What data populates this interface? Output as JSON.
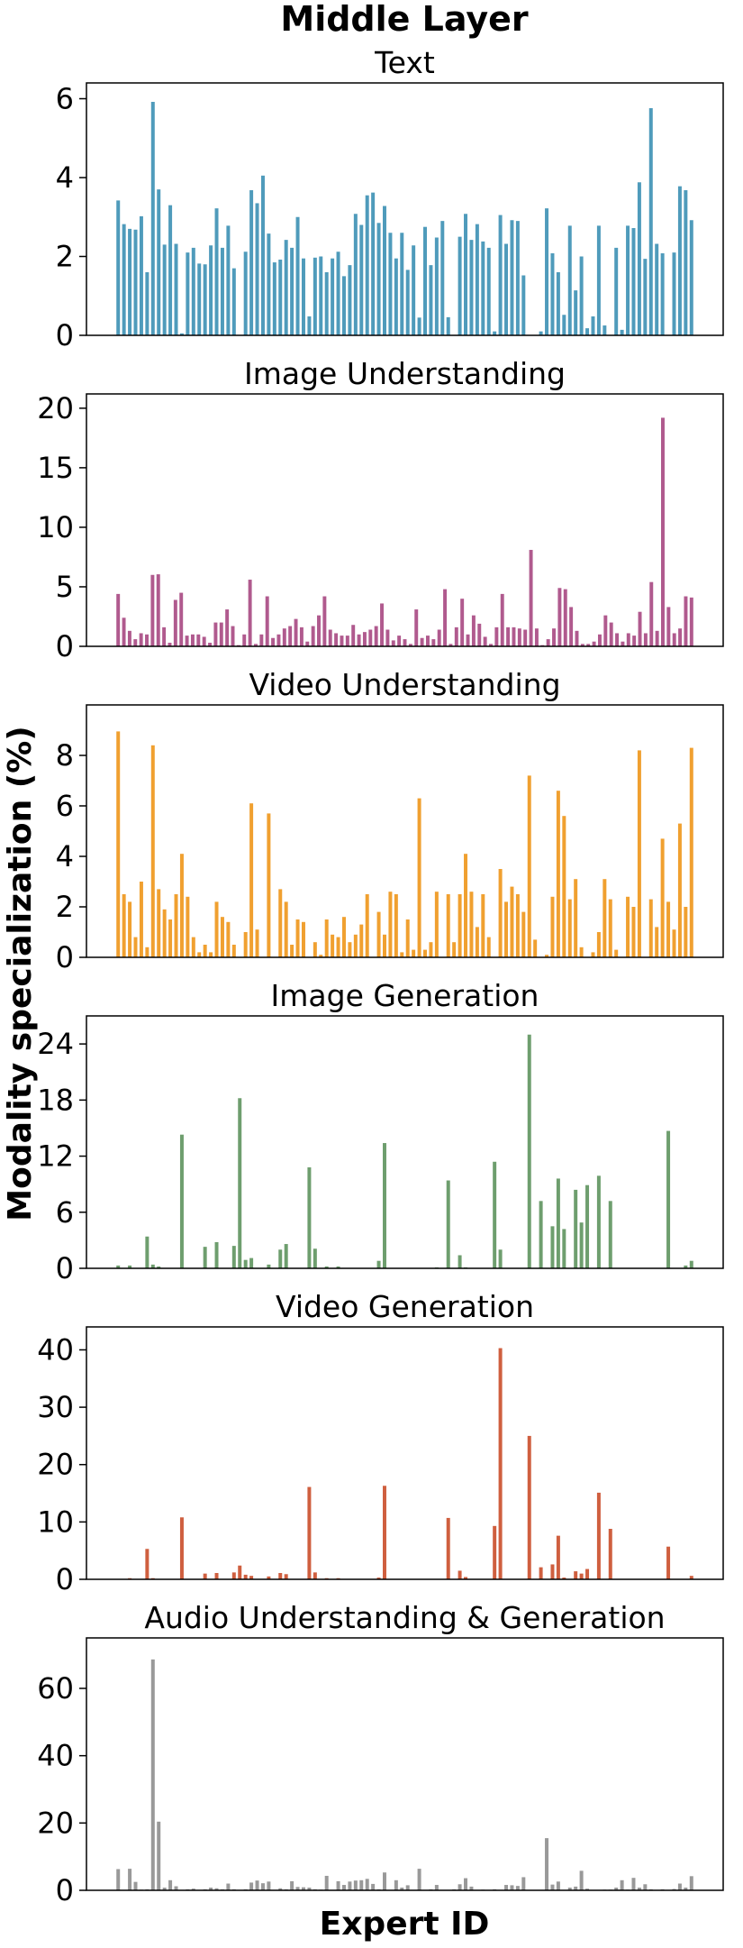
{
  "figure": {
    "title": "Middle Layer",
    "xlabel": "Expert ID",
    "ylabel": "Modality specialization (%)"
  },
  "chart_data": [
    {
      "type": "bar",
      "title": "Text",
      "color": "#4f9bbb",
      "ylim": [
        0,
        6.4
      ],
      "yticks": [
        0,
        2,
        4,
        6
      ],
      "values": [
        3.42,
        2.82,
        2.7,
        2.68,
        3.02,
        1.6,
        5.92,
        3.7,
        2.3,
        3.3,
        2.32,
        0.05,
        2.1,
        2.22,
        1.82,
        1.8,
        2.28,
        3.22,
        2.22,
        2.78,
        1.7,
        0.0,
        2.12,
        3.68,
        3.35,
        4.05,
        2.58,
        1.85,
        1.92,
        2.42,
        2.22,
        3.0,
        1.95,
        0.48,
        1.97,
        2.0,
        1.6,
        1.95,
        2.12,
        1.5,
        1.78,
        3.08,
        2.8,
        3.55,
        3.62,
        2.85,
        3.28,
        2.6,
        1.95,
        2.6,
        1.66,
        2.28,
        0.45,
        2.75,
        1.78,
        2.48,
        2.9,
        0.46,
        0.0,
        2.5,
        3.08,
        2.42,
        2.82,
        2.38,
        2.22,
        0.1,
        3.05,
        2.32,
        2.92,
        2.9,
        1.52,
        0.0,
        0.0,
        0.1,
        3.22,
        2.08,
        1.6,
        0.52,
        2.78,
        1.14,
        2.0,
        0.18,
        0.48,
        2.78,
        0.25,
        0.0,
        2.22,
        0.14,
        2.78,
        2.72,
        3.88,
        1.94,
        5.76,
        2.32,
        2.08,
        0.0,
        2.1,
        3.78,
        3.68,
        2.92
      ]
    },
    {
      "type": "bar",
      "title": "Image Understanding",
      "color": "#b05a8e",
      "ylim": [
        0,
        21.2
      ],
      "yticks": [
        0,
        5,
        10,
        15,
        20
      ],
      "values": [
        4.4,
        2.4,
        1.3,
        0.6,
        1.1,
        1.0,
        6.0,
        6.05,
        1.6,
        0.3,
        3.9,
        4.5,
        0.9,
        1.0,
        1.0,
        0.8,
        0.3,
        2.0,
        2.0,
        3.1,
        1.7,
        0.1,
        1.0,
        5.6,
        0.2,
        1.0,
        4.2,
        0.7,
        1.0,
        1.5,
        1.7,
        2.3,
        1.6,
        0.4,
        1.7,
        2.6,
        4.2,
        1.4,
        1.1,
        0.9,
        0.9,
        1.8,
        1.0,
        1.2,
        1.4,
        1.7,
        3.6,
        1.4,
        0.5,
        0.9,
        0.6,
        0.2,
        3.1,
        0.7,
        0.9,
        0.6,
        1.4,
        4.8,
        0.2,
        1.6,
        4.0,
        1.0,
        2.6,
        1.9,
        0.8,
        0.2,
        1.6,
        4.4,
        1.6,
        1.6,
        1.5,
        1.4,
        8.1,
        1.5,
        0.1,
        0.6,
        1.5,
        4.9,
        4.8,
        3.3,
        1.3,
        0.2,
        0.2,
        0.4,
        1.0,
        2.6,
        2.0,
        1.1,
        0.4,
        1.1,
        0.9,
        2.9,
        1.1,
        5.4,
        1.3,
        19.2,
        3.3,
        1.1,
        1.5,
        4.2,
        4.1
      ]
    },
    {
      "type": "bar",
      "title": "Video Understanding",
      "color": "#f0a030",
      "ylim": [
        0,
        10.0
      ],
      "yticks": [
        0,
        2,
        4,
        6,
        8
      ],
      "values": [
        8.95,
        2.5,
        2.2,
        0.8,
        3.0,
        0.4,
        8.4,
        2.7,
        1.9,
        1.5,
        2.5,
        4.1,
        2.4,
        0.8,
        0.2,
        0.5,
        0.2,
        2.2,
        1.6,
        1.4,
        0.5,
        0.0,
        1.0,
        6.1,
        1.1,
        0.0,
        5.7,
        0.0,
        2.7,
        2.2,
        0.5,
        1.5,
        1.4,
        0.0,
        0.6,
        0.1,
        1.5,
        0.9,
        0.8,
        1.6,
        0.6,
        0.9,
        1.3,
        2.5,
        0.0,
        1.8,
        0.9,
        2.6,
        2.5,
        0.2,
        1.5,
        0.3,
        6.3,
        0.3,
        0.6,
        2.6,
        0.0,
        2.5,
        0.6,
        2.5,
        4.1,
        2.6,
        1.2,
        2.5,
        0.8,
        0.0,
        3.5,
        2.2,
        2.8,
        2.5,
        1.8,
        7.2,
        0.7,
        0.0,
        0.1,
        2.4,
        6.6,
        5.6,
        2.3,
        3.1,
        0.4,
        0.0,
        0.2,
        1.0,
        3.1,
        2.3,
        0.3,
        0.0,
        2.4,
        2.0,
        8.2,
        0.0,
        2.3,
        1.2,
        4.7,
        2.2,
        1.1,
        5.3,
        2.0,
        8.3
      ]
    },
    {
      "type": "bar",
      "title": "Image Generation",
      "color": "#6e9e6e",
      "ylim": [
        0,
        27.0
      ],
      "yticks": [
        0,
        6,
        12,
        18,
        24
      ],
      "values": [
        0.3,
        0.0,
        0.3,
        0.0,
        0.0,
        3.4,
        0.4,
        0.2,
        0.0,
        0.0,
        0.0,
        14.3,
        0.0,
        0.0,
        0.0,
        2.3,
        0.0,
        2.8,
        0.0,
        0.0,
        2.4,
        18.2,
        0.9,
        1.1,
        0.0,
        0.0,
        0.4,
        0.0,
        2.0,
        2.6,
        0.0,
        0.0,
        0.0,
        10.8,
        2.1,
        0.0,
        0.2,
        0.0,
        0.2,
        0.0,
        0.0,
        0.0,
        0.0,
        0.0,
        0.0,
        0.8,
        13.4,
        0.0,
        0.0,
        0.0,
        0.0,
        0.0,
        0.0,
        0.0,
        0.0,
        0.1,
        0.0,
        9.4,
        0.0,
        1.4,
        0.1,
        0.0,
        0.0,
        0.0,
        0.0,
        11.4,
        2.0,
        0.0,
        0.0,
        0.0,
        0.0,
        25.0,
        0.0,
        7.2,
        0.0,
        4.5,
        9.6,
        4.2,
        0.0,
        8.4,
        4.9,
        8.9,
        0.0,
        9.9,
        0.0,
        7.2,
        0.0,
        0.0,
        0.0,
        0.0,
        0.0,
        0.0,
        0.0,
        0.0,
        0.0,
        14.7,
        0.0,
        0.0,
        0.3,
        0.8
      ]
    },
    {
      "type": "bar",
      "title": "Video Generation",
      "color": "#cf5f3f",
      "ylim": [
        0,
        44.0
      ],
      "yticks": [
        0,
        10,
        20,
        30,
        40
      ],
      "values": [
        0.0,
        0.0,
        0.2,
        0.0,
        0.0,
        5.3,
        0.2,
        0.0,
        0.0,
        0.0,
        0.0,
        10.8,
        0.0,
        0.0,
        0.0,
        1.0,
        0.0,
        1.1,
        0.0,
        0.0,
        1.2,
        2.4,
        0.8,
        0.6,
        0.0,
        0.0,
        0.5,
        0.0,
        1.1,
        0.9,
        0.0,
        0.0,
        0.0,
        16.1,
        1.2,
        0.0,
        0.2,
        0.0,
        0.2,
        0.0,
        0.0,
        0.0,
        0.0,
        0.0,
        0.0,
        0.3,
        16.3,
        0.0,
        0.0,
        0.0,
        0.0,
        0.0,
        0.0,
        0.0,
        0.0,
        0.0,
        0.0,
        10.7,
        0.0,
        1.5,
        0.4,
        0.0,
        0.0,
        0.0,
        0.0,
        9.3,
        40.3,
        0.0,
        0.0,
        0.0,
        0.0,
        25.0,
        0.0,
        2.1,
        0.0,
        2.6,
        7.6,
        0.3,
        0.0,
        1.4,
        1.0,
        1.8,
        0.0,
        15.1,
        0.0,
        8.8,
        0.0,
        0.0,
        0.0,
        0.0,
        0.0,
        0.0,
        0.0,
        0.0,
        0.0,
        5.7,
        0.0,
        0.0,
        0.0,
        0.6
      ]
    },
    {
      "type": "bar",
      "title": "Audio Understanding & Generation",
      "color": "#999999",
      "ylim": [
        0,
        75.0
      ],
      "yticks": [
        0,
        20,
        40,
        60
      ],
      "values": [
        6.3,
        0.0,
        6.4,
        2.5,
        0.2,
        0.3,
        68.6,
        20.4,
        0.8,
        3.0,
        1.2,
        0.0,
        0.3,
        0.5,
        0.0,
        0.3,
        0.8,
        0.6,
        0.3,
        2.0,
        0.3,
        0.0,
        0.3,
        2.3,
        2.9,
        2.1,
        2.6,
        0.0,
        0.6,
        0.3,
        2.7,
        1.0,
        0.9,
        0.8,
        0.3,
        0.2,
        4.3,
        0.0,
        2.7,
        1.6,
        2.6,
        2.9,
        3.0,
        3.4,
        1.9,
        0.3,
        5.3,
        0.0,
        3.0,
        0.8,
        1.5,
        0.0,
        6.4,
        0.0,
        0.3,
        1.6,
        0.0,
        0.0,
        0.3,
        1.8,
        3.6,
        1.1,
        0.0,
        0.2,
        0.0,
        0.3,
        0.0,
        1.6,
        1.5,
        1.3,
        3.9,
        0.0,
        0.0,
        0.0,
        15.5,
        1.7,
        2.6,
        0.0,
        0.8,
        1.1,
        5.8,
        0.5,
        0.0,
        0.0,
        0.2,
        0.2,
        0.8,
        3.0,
        0.2,
        3.7,
        0.8,
        1.8,
        0.3,
        0.0,
        0.3,
        0.0,
        0.4,
        2.0,
        0.8,
        4.2
      ]
    }
  ]
}
